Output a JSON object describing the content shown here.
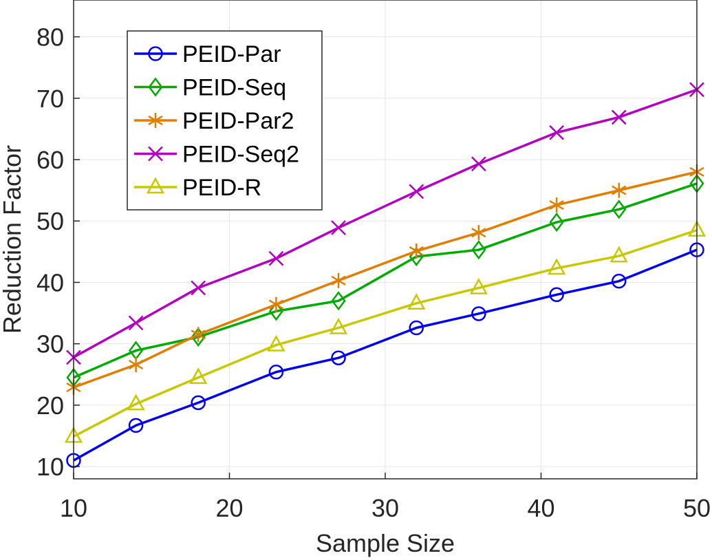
{
  "chart_data": {
    "type": "line",
    "title": "",
    "xlabel": "Sample Size",
    "ylabel": "Reduction Factor",
    "xlim": [
      10,
      50
    ],
    "ylim": [
      8,
      86
    ],
    "xticks": [
      10,
      20,
      30,
      40,
      50
    ],
    "yticks": [
      10,
      20,
      30,
      40,
      50,
      60,
      70,
      80
    ],
    "grid": true,
    "legend_position": "top-left",
    "x": [
      10,
      14,
      18,
      23,
      27,
      32,
      36,
      41,
      45,
      50
    ],
    "series": [
      {
        "name": "PEID-Par",
        "color": "#0000ee",
        "marker": "circle",
        "values": [
          11.0,
          16.7,
          20.4,
          25.4,
          27.7,
          32.6,
          34.9,
          38.0,
          40.2,
          45.3
        ]
      },
      {
        "name": "PEID-Seq",
        "color": "#00aa00",
        "marker": "diamond",
        "values": [
          24.5,
          28.9,
          31.1,
          35.3,
          37.0,
          44.2,
          45.3,
          49.8,
          51.9,
          56.1
        ]
      },
      {
        "name": "PEID-Par2",
        "color": "#e07e00",
        "marker": "asterisk",
        "values": [
          22.9,
          26.6,
          31.5,
          36.4,
          40.3,
          45.1,
          48.1,
          52.6,
          55.0,
          58.0
        ]
      },
      {
        "name": "PEID-Seq2",
        "color": "#b100c0",
        "marker": "x",
        "values": [
          27.8,
          33.4,
          39.1,
          43.9,
          48.9,
          54.8,
          59.3,
          64.4,
          66.9,
          71.4
        ]
      },
      {
        "name": "PEID-R",
        "color": "#c8c800",
        "marker": "triangle",
        "values": [
          14.9,
          20.2,
          24.5,
          29.8,
          32.6,
          36.6,
          39.1,
          42.3,
          44.3,
          48.5
        ]
      }
    ]
  }
}
